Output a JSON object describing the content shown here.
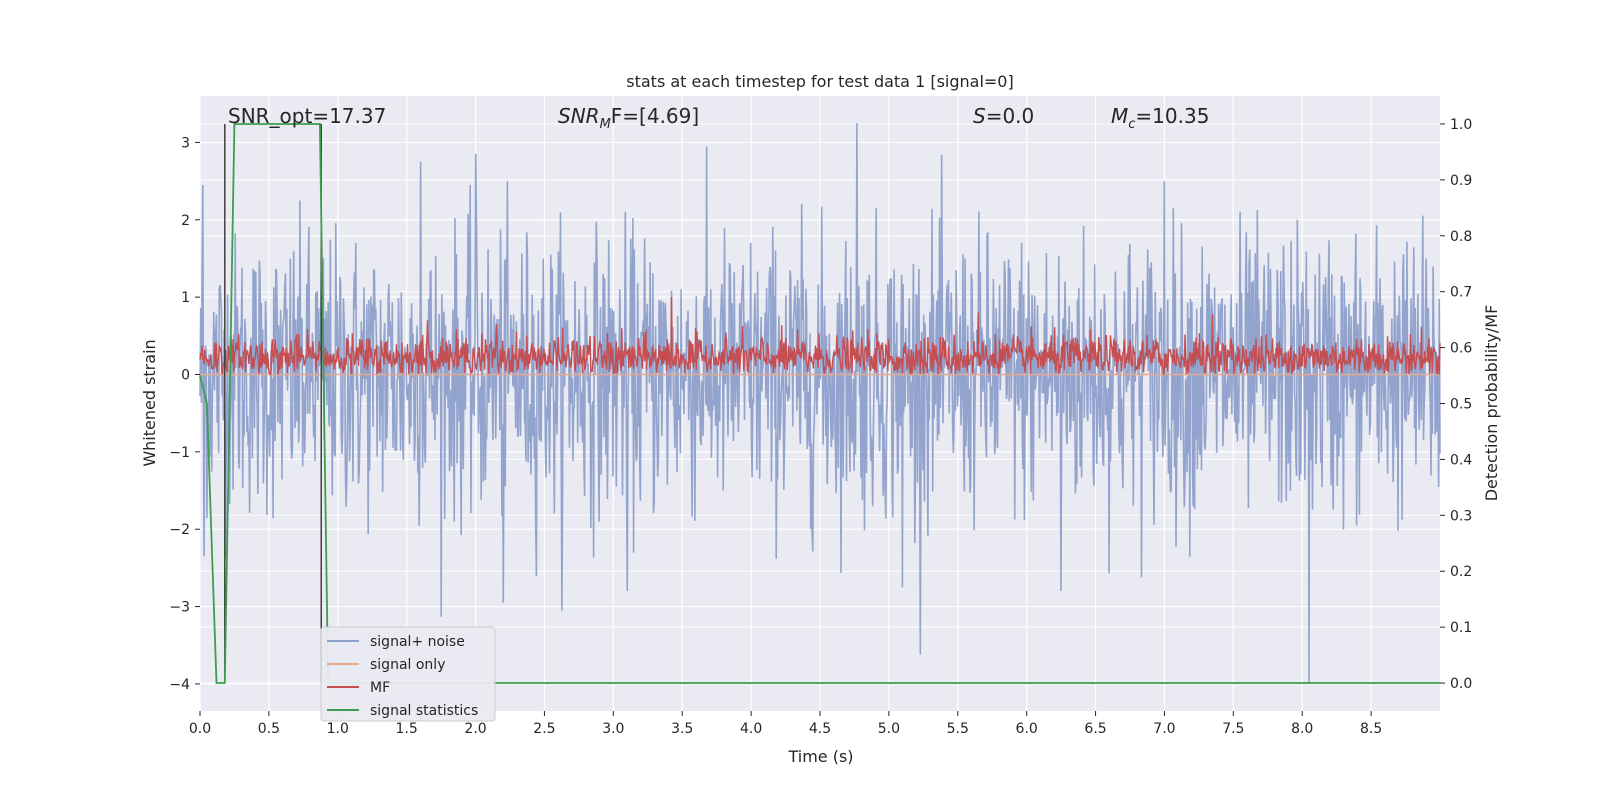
{
  "chart_data": {
    "type": "line",
    "title": "stats at each timestep for test data 1 [signal=0]",
    "xlabel": "Time (s)",
    "ylabel": "Whitened strain",
    "y2label": "Detection probability/MF",
    "xlim": [
      0,
      9
    ],
    "ylim": [
      -4.35,
      3.6
    ],
    "y2lim": [
      -0.05,
      1.05
    ],
    "x_ticks": [
      "0.0",
      "0.5",
      "1.0",
      "1.5",
      "2.0",
      "2.5",
      "3.0",
      "3.5",
      "4.0",
      "4.5",
      "5.0",
      "5.5",
      "6.0",
      "6.5",
      "7.0",
      "7.5",
      "8.0",
      "8.5"
    ],
    "y_ticks": [
      "3",
      "2",
      "1",
      "0",
      "−1",
      "−2",
      "−3",
      "−4"
    ],
    "y2_ticks": [
      "1.0",
      "0.9",
      "0.8",
      "0.7",
      "0.6",
      "0.5",
      "0.4",
      "0.3",
      "0.2",
      "0.1",
      "0.0"
    ],
    "grid": true,
    "legend_position": "lower-left",
    "annotations": {
      "snr_opt": "SNR_opt=17.37",
      "snr_mf_main": "SNR",
      "snr_mf_sub": "M",
      "snr_mf_rest": "F=[4.69]",
      "s_main": "S",
      "s_rest": "=0.0",
      "mc_main": "M",
      "mc_sub": "c",
      "mc_rest": "=10.35"
    },
    "series": [
      {
        "name": "signal+ noise",
        "color": "#8da0cb",
        "axis": "left",
        "description": "noisy whitened strain, roughly symmetric about 0 with amplitude ~±1.5, peaks to ~3.2 and ~-4",
        "envelope": [
          -1.6,
          1.6
        ],
        "peaks": [
          [
            4.77,
            3.25
          ],
          [
            2.0,
            2.85
          ],
          [
            1.6,
            2.75
          ],
          [
            7.0,
            2.5
          ],
          [
            8.05,
            -4.0
          ],
          [
            3.1,
            -2.8
          ],
          [
            5.1,
            -2.75
          ],
          [
            6.25,
            -2.8
          ],
          [
            2.2,
            -2.95
          ],
          [
            0.02,
            2.45
          ],
          [
            0.03,
            -2.35
          ]
        ]
      },
      {
        "name": "signal only",
        "color": "#e8a88c",
        "axis": "left",
        "x": [
          0,
          9
        ],
        "y": [
          0,
          0
        ]
      },
      {
        "name": "MF",
        "color": "#c44e52",
        "axis": "left",
        "description": "matched-filter output, positive values mostly 0.0–0.55 with peaks ~1.0",
        "baseline": 0.05,
        "range": [
          0.0,
          0.6
        ],
        "peaks": [
          [
            3.42,
            1.0
          ],
          [
            2.15,
            0.65
          ],
          [
            7.35,
            0.78
          ],
          [
            5.65,
            0.8
          ],
          [
            1.65,
            0.7
          ]
        ]
      },
      {
        "name": "signal statistics",
        "color": "#3d9d4f",
        "axis": "right",
        "x": [
          0.0,
          0.05,
          0.12,
          0.18,
          0.25,
          0.87,
          0.93,
          1.0,
          9.0
        ],
        "y": [
          0.55,
          0.5,
          0.0,
          0.0,
          1.0,
          1.0,
          0.0,
          0.0,
          0.0
        ]
      }
    ],
    "vlines": [
      {
        "x": 0.18,
        "color": "#404040"
      },
      {
        "x": 0.88,
        "color": "#404040"
      }
    ]
  }
}
